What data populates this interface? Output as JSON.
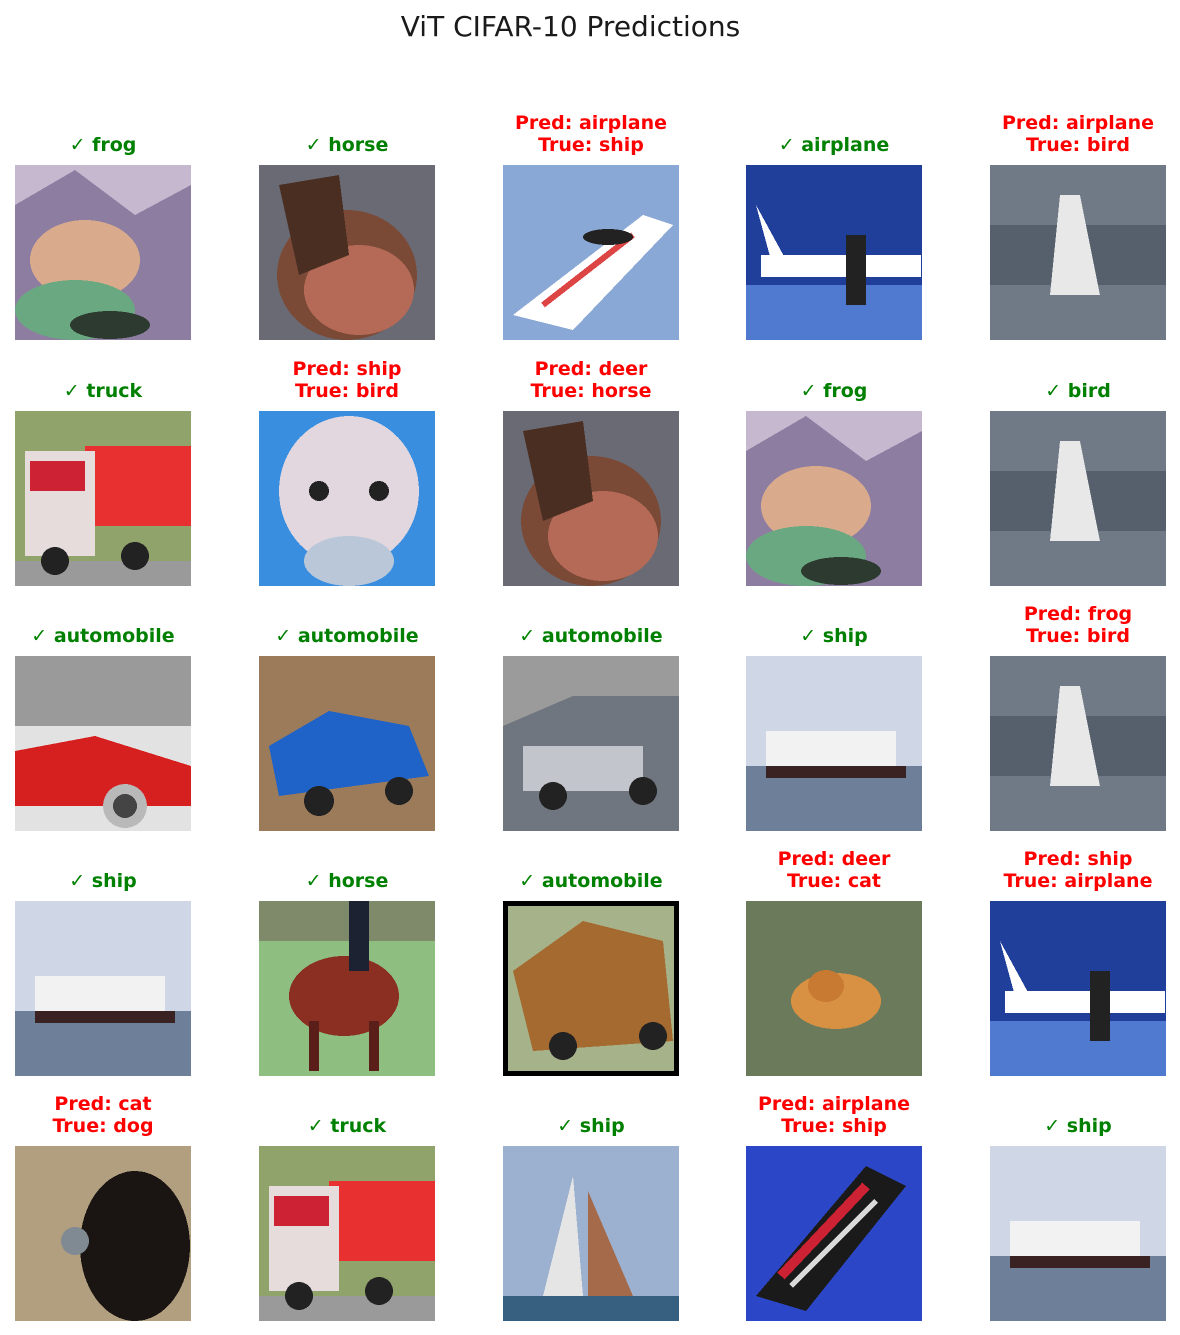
{
  "title": "ViT CIFAR-10 Predictions",
  "samples": [
    {
      "correct": true,
      "line1": "✓ frog",
      "line2": "",
      "icon": "frog-image"
    },
    {
      "correct": true,
      "line1": "✓ horse",
      "line2": "",
      "icon": "horse-image"
    },
    {
      "correct": false,
      "line1": "Pred: airplane",
      "line2": "True: ship",
      "icon": "speedboat-image"
    },
    {
      "correct": true,
      "line1": "✓ airplane",
      "line2": "",
      "icon": "airplane-image"
    },
    {
      "correct": false,
      "line1": "Pred: airplane",
      "line2": "True: bird",
      "icon": "bird-image"
    },
    {
      "correct": true,
      "line1": "✓ truck",
      "line2": "",
      "icon": "truck-image"
    },
    {
      "correct": false,
      "line1": "Pred: ship",
      "line2": "True: bird",
      "icon": "ostrich-image"
    },
    {
      "correct": false,
      "line1": "Pred: deer",
      "line2": "True: horse",
      "icon": "horse-image"
    },
    {
      "correct": true,
      "line1": "✓ frog",
      "line2": "",
      "icon": "frog-image"
    },
    {
      "correct": true,
      "line1": "✓ bird",
      "line2": "",
      "icon": "bird-image"
    },
    {
      "correct": true,
      "line1": "✓ automobile",
      "line2": "",
      "icon": "red-car-image"
    },
    {
      "correct": true,
      "line1": "✓ automobile",
      "line2": "",
      "icon": "blue-car-image"
    },
    {
      "correct": true,
      "line1": "✓ automobile",
      "line2": "",
      "icon": "grey-car-image"
    },
    {
      "correct": true,
      "line1": "✓ ship",
      "line2": "",
      "icon": "ship-image"
    },
    {
      "correct": false,
      "line1": "Pred: frog",
      "line2": "True: bird",
      "icon": "bird-image"
    },
    {
      "correct": true,
      "line1": "✓ ship",
      "line2": "",
      "icon": "ship-image"
    },
    {
      "correct": true,
      "line1": "✓ horse",
      "line2": "",
      "icon": "horse-rider-image"
    },
    {
      "correct": true,
      "line1": "✓ automobile",
      "line2": "",
      "icon": "vintage-car-image"
    },
    {
      "correct": false,
      "line1": "Pred: deer",
      "line2": "True: cat",
      "icon": "cat-image"
    },
    {
      "correct": false,
      "line1": "Pred: ship",
      "line2": "True: airplane",
      "icon": "airplane-image"
    },
    {
      "correct": false,
      "line1": "Pred: cat",
      "line2": "True: dog",
      "icon": "dog-image"
    },
    {
      "correct": true,
      "line1": "✓ truck",
      "line2": "",
      "icon": "truck-image"
    },
    {
      "correct": true,
      "line1": "✓ ship",
      "line2": "",
      "icon": "sailboat-image"
    },
    {
      "correct": false,
      "line1": "Pred: airplane",
      "line2": "True: ship",
      "icon": "cargo-ship-image"
    },
    {
      "correct": true,
      "line1": "✓ ship",
      "line2": "",
      "icon": "ship-image"
    }
  ],
  "colors": {
    "correct": "#008000",
    "incorrect": "#ff0000"
  }
}
